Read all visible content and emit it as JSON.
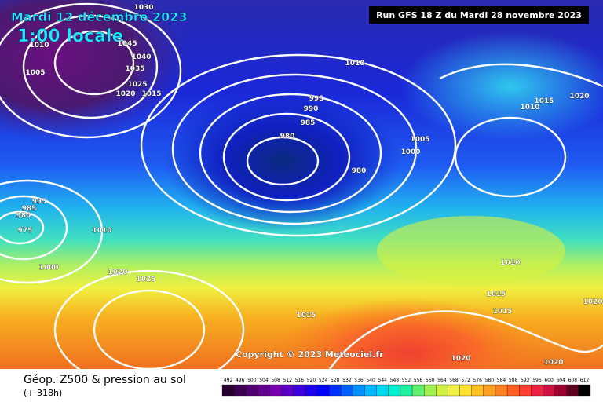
{
  "header": {
    "date": "Mardi 12 décembre 2023",
    "time": "1:00 locale",
    "run": "Run GFS 18 Z du Mardi 28 novembre 2023"
  },
  "isobar_labels": [
    "1030",
    "1045",
    "1040",
    "1035",
    "1025",
    "1020",
    "1015",
    "1010",
    "1005",
    "1010",
    "995",
    "990",
    "985",
    "980",
    "980",
    "1005",
    "1000",
    "1015",
    "1010",
    "1020",
    "995",
    "985",
    "980",
    "975",
    "1010",
    "1000",
    "1020",
    "1025",
    "1010",
    "1015",
    "1015",
    "1015",
    "1020",
    "1020",
    "1020"
  ],
  "copyright": "Copyright © 2023 Meteociel.fr",
  "footer": {
    "title": "Géop. Z500 & pression au sol",
    "lead": "(+ 318h)"
  },
  "legend": {
    "values": [
      492,
      496,
      500,
      504,
      508,
      512,
      516,
      520,
      524,
      528,
      532,
      536,
      540,
      544,
      548,
      552,
      556,
      560,
      564,
      568,
      572,
      576,
      580,
      584,
      588,
      592,
      596,
      600,
      604,
      608,
      612
    ],
    "colors": [
      "#280030",
      "#3c0050",
      "#500070",
      "#640090",
      "#7800b0",
      "#5a00c8",
      "#3c00dc",
      "#1e00f0",
      "#0000ff",
      "#0030ff",
      "#0060ff",
      "#0090ff",
      "#00b8ff",
      "#00d8f0",
      "#00f0d0",
      "#20f0a0",
      "#60f070",
      "#a0f050",
      "#d0f040",
      "#f0f040",
      "#ffe030",
      "#ffc020",
      "#ffa020",
      "#ff8020",
      "#ff6020",
      "#ff4030",
      "#f02040",
      "#d01040",
      "#a00030",
      "#600020",
      "#000000"
    ]
  }
}
